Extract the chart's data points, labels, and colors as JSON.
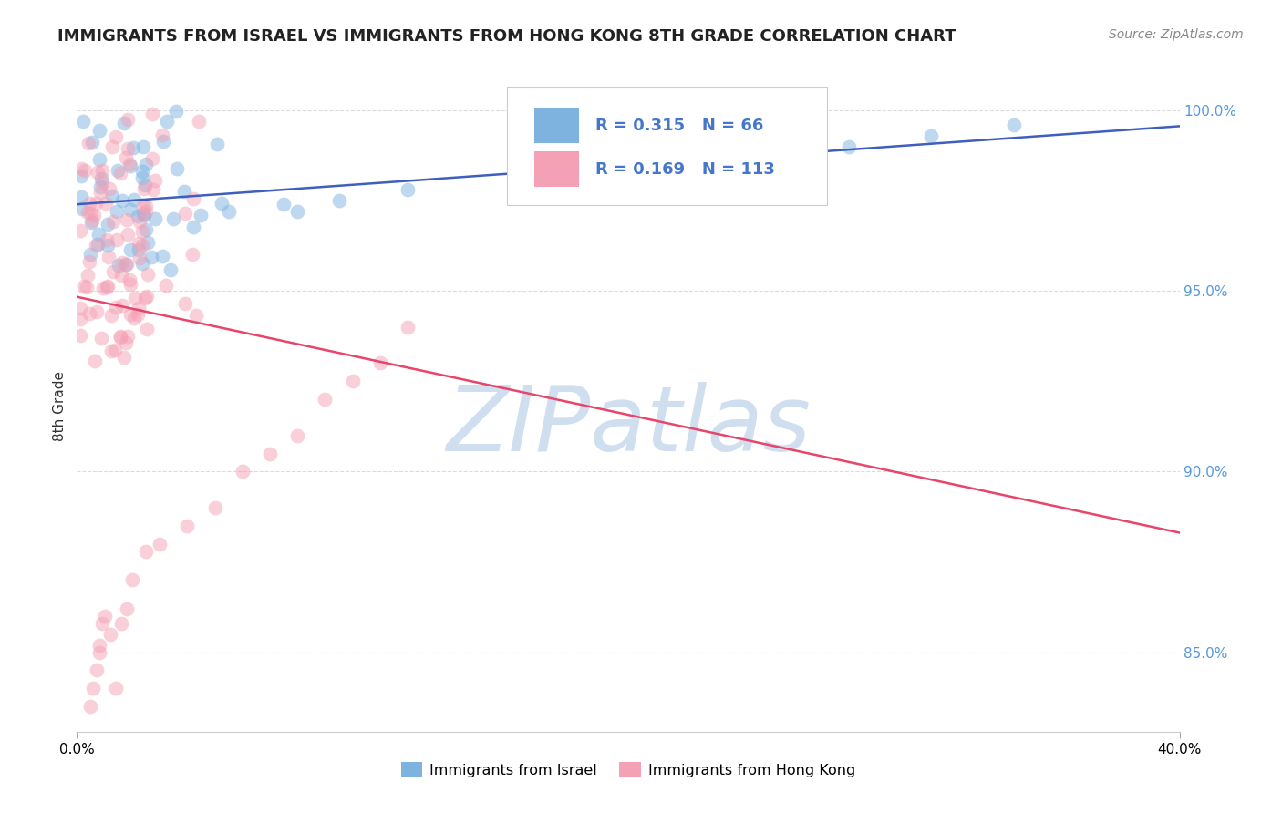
{
  "title": "IMMIGRANTS FROM ISRAEL VS IMMIGRANTS FROM HONG KONG 8TH GRADE CORRELATION CHART",
  "source": "Source: ZipAtlas.com",
  "ylabel": "8th Grade",
  "xlim": [
    0.0,
    0.4
  ],
  "ylim": [
    0.828,
    1.008
  ],
  "yticks": [
    0.85,
    0.9,
    0.95,
    1.0
  ],
  "ytick_labels": [
    "85.0%",
    "90.0%",
    "95.0%",
    "100.0%"
  ],
  "xtick_labels": [
    "0.0%",
    "40.0%"
  ],
  "legend_label1": "Immigrants from Israel",
  "legend_label2": "Immigrants from Hong Kong",
  "R1": 0.315,
  "N1": 66,
  "R2": 0.169,
  "N2": 113,
  "color1": "#7EB3E0",
  "color2": "#F4A0B5",
  "trend_color1": "#3F5FBF",
  "trend_color2": "#E8456A",
  "watermark_color": "#D0DFF0",
  "background_color": "#FFFFFF",
  "title_fontsize": 13,
  "source_fontsize": 10,
  "tick_fontsize": 11,
  "ylabel_fontsize": 11,
  "legend_fontsize": 14,
  "scatter_size": 130,
  "scatter_alpha": 0.5,
  "trend_lw": 1.8,
  "grid_color": "#CCCCCC",
  "grid_alpha": 0.7,
  "grid_lw": 0.8
}
